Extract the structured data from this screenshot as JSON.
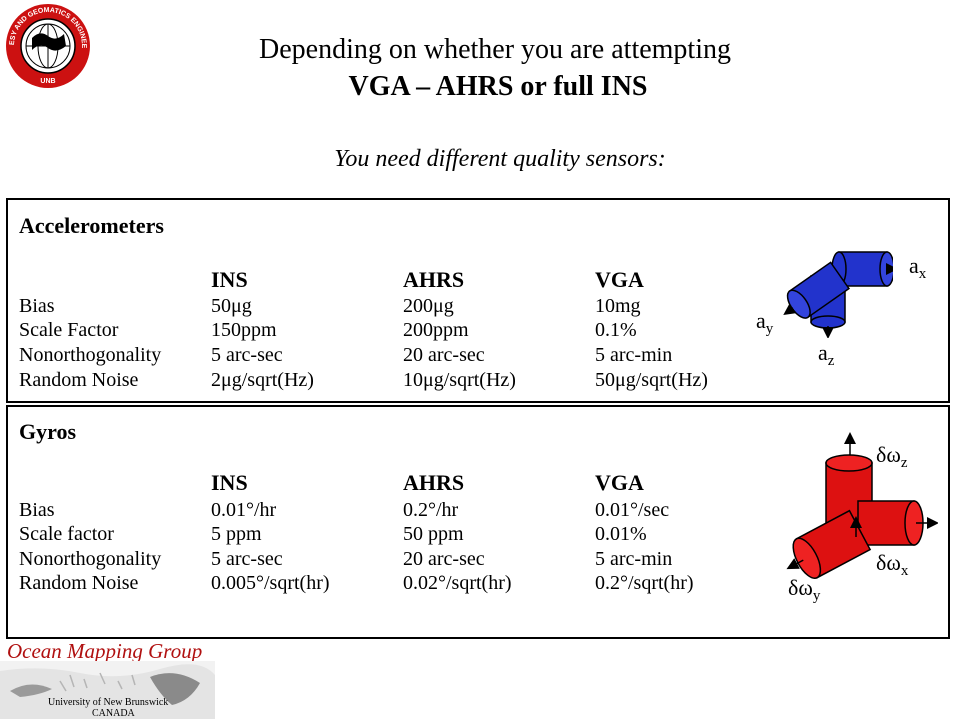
{
  "logo": {
    "ring_text_top": "GEODESY AND GEOMATICS ENGINEERING",
    "ring_text_bottom": "UNB"
  },
  "title": {
    "line1": "Depending on whether you are attempting",
    "line2": "VGA – AHRS or full INS"
  },
  "subtitle": "You need different quality sensors:",
  "accelerometers": {
    "heading": "Accelerometers",
    "columns": [
      "INS",
      "AHRS",
      "VGA"
    ],
    "rows": [
      {
        "label": "Bias",
        "ins": "50μg",
        "ahrs": "200μg",
        "vga": "10mg"
      },
      {
        "label": "Scale Factor",
        "ins": "150ppm",
        "ahrs": "200ppm",
        "vga": "0.1%"
      },
      {
        "label": "Nonorthogonality",
        "ins": "5 arc-sec",
        "ahrs": "20 arc-sec",
        "vga": "5 arc-min"
      },
      {
        "label": "Random Noise",
        "ins": "2μg/sqrt(Hz)",
        "ahrs": "10μg/sqrt(Hz)",
        "vga": "50μg/sqrt(Hz)"
      }
    ],
    "axes": {
      "x": "a",
      "x_sub": "x",
      "y": "a",
      "y_sub": "y",
      "z": "a",
      "z_sub": "z"
    },
    "color": "#2222cc"
  },
  "gyros": {
    "heading": "Gyros",
    "columns": [
      "INS",
      "AHRS",
      "VGA"
    ],
    "rows": [
      {
        "label": "Bias",
        "ins": "0.01°/hr",
        "ahrs": "0.2°/hr",
        "vga": "0.01°/sec"
      },
      {
        "label": "Scale factor",
        "ins": "5 ppm",
        "ahrs": "50 ppm",
        "vga": "0.01%"
      },
      {
        "label": "Nonorthogonality",
        "ins": "5 arc-sec",
        "ahrs": "20 arc-sec",
        "vga": "5 arc-min"
      },
      {
        "label": "Random Noise",
        "ins": "0.005°/sqrt(hr)",
        "ahrs": "0.02°/sqrt(hr)",
        "vga": "0.2°/sqrt(hr)"
      }
    ],
    "axes": {
      "x": "δω",
      "x_sub": "x",
      "y": "δω",
      "y_sub": "y",
      "z": "δω",
      "z_sub": "z"
    },
    "color": "#dd1111"
  },
  "footer": {
    "group": "Ocean Mapping Group",
    "university": "University of New Brunswick",
    "country": "CANADA",
    "group_color": "#b01010"
  }
}
